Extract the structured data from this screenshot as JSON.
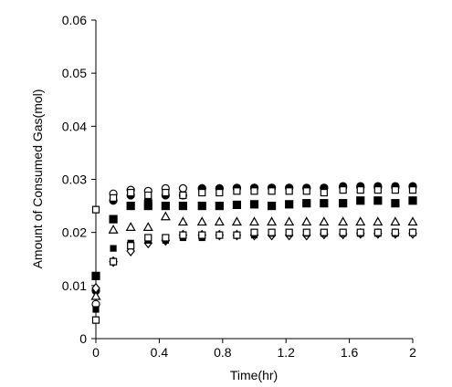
{
  "chart_data": {
    "type": "scatter",
    "x_label": "Time(hr)",
    "y_label": "Amount of Consumed Gas(mol)",
    "x": [
      0,
      0.11,
      0.22,
      0.33,
      0.44,
      0.55,
      0.67,
      0.78,
      0.89,
      1.0,
      1.11,
      1.22,
      1.33,
      1.44,
      1.56,
      1.67,
      1.78,
      1.89,
      2.0
    ],
    "xlim": [
      0,
      2
    ],
    "ylim": [
      0,
      0.06
    ],
    "xticks": [
      0,
      0.4,
      0.8,
      1.2,
      1.6,
      2
    ],
    "yticks": [
      0,
      0.01,
      0.02,
      0.03,
      0.04,
      0.05,
      0.06
    ],
    "grid": false,
    "series": [
      {
        "marker": "circle-open",
        "color": "#000000",
        "values": [
          0.0065,
          0.0273,
          0.028,
          0.0278,
          0.0283,
          0.0283,
          0.0283,
          0.0283,
          0.0284,
          0.0284,
          0.0284,
          0.0284,
          0.0284,
          0.0284,
          0.0285,
          0.0285,
          0.0285,
          0.0285,
          0.0286
        ]
      },
      {
        "marker": "circle-filled",
        "color": "#000000",
        "values": [
          0.009,
          0.026,
          0.027,
          0.026,
          0.027,
          0.027,
          0.0283,
          0.0283,
          0.0283,
          0.0284,
          0.0284,
          0.0284,
          0.0283,
          0.0284,
          0.0287,
          0.0287,
          0.0287,
          0.0287,
          0.0287
        ]
      },
      {
        "marker": "square-open",
        "color": "#000000",
        "values": [
          0.0243,
          0.0265,
          0.0275,
          0.027,
          0.0275,
          0.027,
          0.0275,
          0.0275,
          0.0278,
          0.0278,
          0.0278,
          0.0278,
          0.0278,
          0.0275,
          0.028,
          0.028,
          0.028,
          0.028,
          0.028
        ]
      },
      {
        "marker": "square-filled",
        "color": "#000000",
        "values": [
          0.0118,
          0.0225,
          0.025,
          0.025,
          0.025,
          0.025,
          0.025,
          0.025,
          0.0252,
          0.0253,
          0.025,
          0.0253,
          0.0255,
          0.0255,
          0.0255,
          0.026,
          0.026,
          0.0255,
          0.026
        ]
      },
      {
        "marker": "triangle-up",
        "color": "#000000",
        "values": [
          0.008,
          0.0205,
          0.021,
          0.021,
          0.023,
          0.022,
          0.022,
          0.022,
          0.022,
          0.022,
          0.022,
          0.022,
          0.022,
          0.022,
          0.022,
          0.022,
          0.022,
          0.022,
          0.022
        ]
      },
      {
        "marker": "diamond",
        "color": "#000000",
        "values": [
          0.0095,
          0.0145,
          0.0165,
          0.018,
          0.0185,
          0.0195,
          0.0195,
          0.0195,
          0.0195,
          0.0195,
          0.0195,
          0.0195,
          0.0195,
          0.0197,
          0.0197,
          0.0198,
          0.0198,
          0.0198,
          0.0198
        ]
      },
      {
        "marker": "square-small",
        "color": "#000000",
        "values": [
          0.0055,
          0.017,
          0.018,
          0.0185,
          0.0185,
          0.019,
          0.019,
          0.0195,
          0.0195,
          0.0195,
          0.0198,
          0.0198,
          0.0198,
          0.0198,
          0.0198,
          0.0198,
          0.0198,
          0.0198,
          0.02
        ]
      },
      {
        "marker": "square-open",
        "color": "#000000",
        "values": [
          0.0035,
          0.0145,
          0.0175,
          0.019,
          0.019,
          0.0195,
          0.0195,
          0.0195,
          0.0195,
          0.02,
          0.02,
          0.02,
          0.02,
          0.02,
          0.02,
          0.02,
          0.02,
          0.02,
          0.02
        ]
      }
    ]
  }
}
